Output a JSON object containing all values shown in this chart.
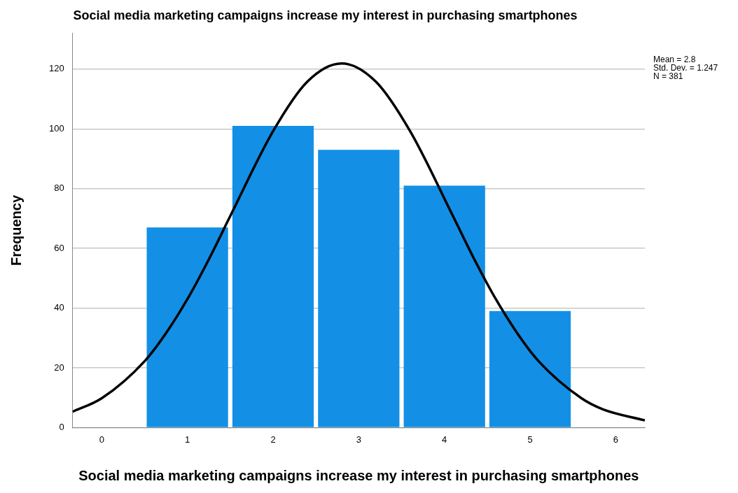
{
  "chart_data": {
    "type": "histogram",
    "title": "Social media marketing campaigns increase my interest in purchasing smartphones",
    "xlabel": "Social media marketing campaigns increase my interest in purchasing smartphones",
    "ylabel": "Frequency",
    "bins": [
      0.5,
      1.5,
      2.5,
      3.5,
      4.5,
      5.5
    ],
    "values": [
      67,
      101,
      93,
      81,
      39
    ],
    "color": "#1390e6",
    "series": [
      {
        "type": "line",
        "color": "#000000",
        "x": [
          -0.34,
          0,
          0.5,
          0.75,
          1,
          1.25,
          1.5,
          2,
          2.4,
          2.8,
          3.2,
          3.6,
          4.1,
          4.35,
          4.6,
          4.85,
          5.1,
          5.6,
          5.85,
          6.34
        ],
        "values": [
          5.3,
          9.8,
          22.2,
          31.6,
          43.0,
          56.3,
          70.8,
          99.2,
          115.8,
          121.9,
          115.8,
          99.2,
          70.8,
          56.3,
          43.0,
          31.6,
          22.2,
          9.8,
          6.1,
          2.4
        ]
      }
    ],
    "xlim": [
      -0.34,
      6.34
    ],
    "xticks": [
      0,
      1,
      2,
      3,
      4,
      5,
      6
    ],
    "ylim": [
      0,
      132
    ],
    "yticks": [
      0,
      20,
      40,
      60,
      80,
      100,
      120
    ],
    "grid": "y",
    "legend": false,
    "marker": "none",
    "annotations": [
      "Mean = 2.8",
      "Std. Dev. = 1.247",
      "N = 381"
    ]
  }
}
